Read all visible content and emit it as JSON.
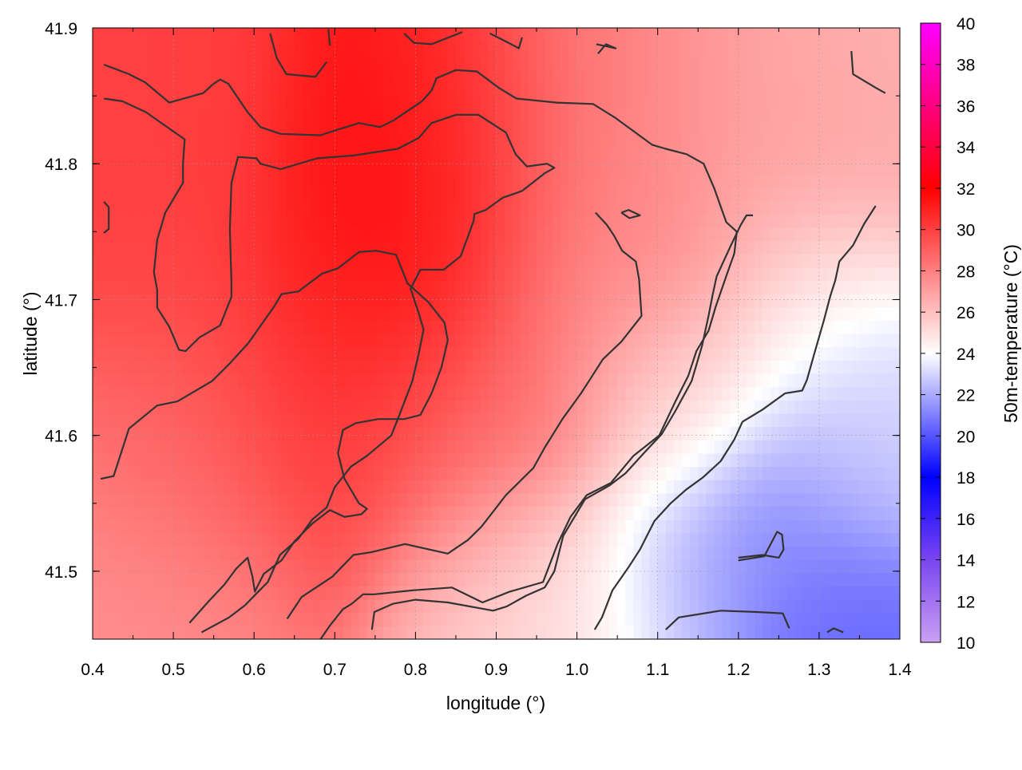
{
  "chart_data": {
    "type": "heatmap",
    "xlabel": "longitude (°)",
    "ylabel": "latitude (°)",
    "colorbar_label": "50m-temperature (°C)",
    "xlim": [
      0.4,
      1.4
    ],
    "ylim": [
      41.45,
      41.9
    ],
    "x_ticks": [
      0.4,
      0.5,
      0.6,
      0.7,
      0.8,
      0.9,
      1.0,
      1.1,
      1.2,
      1.3,
      1.4
    ],
    "x_tick_labels": [
      "0.4",
      "0.5",
      "0.6",
      "0.7",
      "0.8",
      "0.9",
      "1.0",
      "1.1",
      "1.2",
      "1.3",
      "1.4"
    ],
    "y_ticks": [
      41.5,
      41.6,
      41.7,
      41.8,
      41.9
    ],
    "y_tick_labels": [
      "41.5",
      "41.6",
      "41.7",
      "41.8",
      "41.9"
    ],
    "colorbar_range": [
      10,
      40
    ],
    "colorbar_ticks": [
      10,
      12,
      14,
      16,
      18,
      20,
      22,
      24,
      26,
      28,
      30,
      32,
      34,
      36,
      38,
      40
    ],
    "colorbar_tick_labels": [
      "10",
      "12",
      "14",
      "16",
      "18",
      "20",
      "22",
      "24",
      "26",
      "28",
      "30",
      "32",
      "34",
      "36",
      "38",
      "40"
    ],
    "colormap": [
      {
        "value": 10,
        "color": "#c9a0f2"
      },
      {
        "value": 14,
        "color": "#7a45f0"
      },
      {
        "value": 18,
        "color": "#0000ff"
      },
      {
        "value": 24,
        "color": "#ffffff"
      },
      {
        "value": 32,
        "color": "#ff0000"
      },
      {
        "value": 40,
        "color": "#ff00ff"
      }
    ],
    "grid": true,
    "contour_color": "#333333",
    "contour_lines": [
      [
        [
          0.414,
          41.873
        ],
        [
          0.445,
          41.866
        ],
        [
          0.465,
          41.86
        ],
        [
          0.495,
          41.845
        ],
        [
          0.537,
          41.852
        ],
        [
          0.55,
          41.859
        ],
        [
          0.558,
          41.862
        ],
        [
          0.568,
          41.859
        ],
        [
          0.592,
          41.838
        ],
        [
          0.608,
          41.827
        ],
        [
          0.633,
          41.822
        ],
        [
          0.682,
          41.821
        ],
        [
          0.703,
          41.825
        ],
        [
          0.73,
          41.83
        ],
        [
          0.756,
          41.827
        ],
        [
          0.773,
          41.832
        ],
        [
          0.808,
          41.846
        ],
        [
          0.82,
          41.854
        ],
        [
          0.826,
          41.863
        ],
        [
          0.85,
          41.869
        ],
        [
          0.876,
          41.868
        ],
        [
          0.903,
          41.856
        ],
        [
          0.925,
          41.848
        ],
        [
          0.975,
          41.845
        ],
        [
          1.02,
          41.844
        ],
        [
          1.047,
          41.834
        ],
        [
          1.093,
          41.814
        ],
        [
          1.11,
          41.811
        ],
        [
          1.136,
          41.807
        ],
        [
          1.157,
          41.8
        ],
        [
          1.17,
          41.782
        ],
        [
          1.185,
          41.757
        ],
        [
          1.198,
          41.75
        ],
        [
          1.195,
          41.734
        ],
        [
          1.186,
          41.719
        ],
        [
          1.172,
          41.695
        ],
        [
          1.163,
          41.677
        ],
        [
          1.148,
          41.662
        ],
        [
          1.138,
          41.644
        ],
        [
          1.122,
          41.625
        ],
        [
          1.102,
          41.6
        ],
        [
          1.07,
          41.585
        ],
        [
          1.042,
          41.565
        ],
        [
          1.012,
          41.556
        ],
        [
          0.992,
          41.54
        ],
        [
          0.976,
          41.52
        ],
        [
          0.958,
          41.492
        ],
        [
          0.917,
          41.485
        ],
        [
          0.883,
          41.477
        ],
        [
          0.845,
          41.488
        ],
        [
          0.798,
          41.486
        ],
        [
          0.749,
          41.483
        ],
        [
          0.735,
          41.483
        ],
        [
          0.721,
          41.476
        ],
        [
          0.71,
          41.472
        ],
        [
          0.694,
          41.46
        ],
        [
          0.68,
          41.448
        ]
      ],
      [
        [
          0.414,
          41.848
        ],
        [
          0.437,
          41.846
        ],
        [
          0.466,
          41.838
        ],
        [
          0.49,
          41.828
        ],
        [
          0.514,
          41.818
        ],
        [
          0.512,
          41.8
        ],
        [
          0.512,
          41.786
        ],
        [
          0.49,
          41.764
        ],
        [
          0.48,
          41.744
        ],
        [
          0.476,
          41.72
        ],
        [
          0.48,
          41.707
        ],
        [
          0.48,
          41.694
        ],
        [
          0.495,
          41.68
        ],
        [
          0.507,
          41.663
        ],
        [
          0.515,
          41.662
        ],
        [
          0.532,
          41.672
        ],
        [
          0.558,
          41.681
        ],
        [
          0.572,
          41.702
        ],
        [
          0.572,
          41.712
        ],
        [
          0.57,
          41.752
        ],
        [
          0.572,
          41.786
        ],
        [
          0.58,
          41.805
        ],
        [
          0.603,
          41.804
        ],
        [
          0.608,
          41.8
        ],
        [
          0.633,
          41.796
        ],
        [
          0.678,
          41.804
        ],
        [
          0.722,
          41.806
        ],
        [
          0.778,
          41.811
        ],
        [
          0.804,
          41.819
        ],
        [
          0.82,
          41.83
        ],
        [
          0.85,
          41.836
        ],
        [
          0.878,
          41.836
        ],
        [
          0.912,
          41.823
        ],
        [
          0.924,
          41.807
        ],
        [
          0.938,
          41.798
        ],
        [
          0.963,
          41.8
        ],
        [
          0.972,
          41.797
        ],
        [
          0.96,
          41.793
        ],
        [
          0.932,
          41.78
        ],
        [
          0.908,
          41.775
        ],
        [
          0.887,
          41.766
        ],
        [
          0.873,
          41.763
        ],
        [
          0.872,
          41.758
        ],
        [
          0.866,
          41.748
        ],
        [
          0.856,
          41.732
        ],
        [
          0.835,
          41.722
        ],
        [
          0.806,
          41.722
        ],
        [
          0.794,
          41.708
        ],
        [
          0.804,
          41.69
        ],
        [
          0.81,
          41.678
        ],
        [
          0.804,
          41.66
        ],
        [
          0.796,
          41.64
        ],
        [
          0.782,
          41.618
        ],
        [
          0.77,
          41.6
        ],
        [
          0.74,
          41.585
        ],
        [
          0.72,
          41.577
        ],
        [
          0.7,
          41.562
        ],
        [
          0.69,
          41.547
        ],
        [
          0.672,
          41.538
        ],
        [
          0.655,
          41.524
        ],
        [
          0.632,
          41.512
        ],
        [
          0.617,
          41.492
        ],
        [
          0.602,
          41.483
        ],
        [
          0.589,
          41.475
        ],
        [
          0.569,
          41.466
        ],
        [
          0.535,
          41.455
        ]
      ],
      [
        [
          0.41,
          41.568
        ],
        [
          0.426,
          41.57
        ],
        [
          0.445,
          41.605
        ],
        [
          0.48,
          41.622
        ],
        [
          0.505,
          41.625
        ],
        [
          0.548,
          41.64
        ],
        [
          0.57,
          41.653
        ],
        [
          0.593,
          41.668
        ],
        [
          0.625,
          41.695
        ],
        [
          0.634,
          41.704
        ],
        [
          0.655,
          41.706
        ],
        [
          0.684,
          41.719
        ],
        [
          0.704,
          41.723
        ],
        [
          0.73,
          41.735
        ],
        [
          0.751,
          41.736
        ],
        [
          0.776,
          41.733
        ],
        [
          0.79,
          41.712
        ],
        [
          0.816,
          41.698
        ],
        [
          0.836,
          41.683
        ],
        [
          0.84,
          41.67
        ],
        [
          0.832,
          41.65
        ],
        [
          0.82,
          41.631
        ],
        [
          0.806,
          41.615
        ],
        [
          0.786,
          41.612
        ],
        [
          0.754,
          41.612
        ],
        [
          0.726,
          41.609
        ],
        [
          0.71,
          41.604
        ],
        [
          0.704,
          41.587
        ],
        [
          0.712,
          41.568
        ],
        [
          0.73,
          41.55
        ],
        [
          0.74,
          41.546
        ],
        [
          0.733,
          41.542
        ],
        [
          0.712,
          41.54
        ],
        [
          0.694,
          41.545
        ],
        [
          0.672,
          41.535
        ],
        [
          0.65,
          41.522
        ],
        [
          0.634,
          41.508
        ],
        [
          0.612,
          41.498
        ],
        [
          0.601,
          41.485
        ],
        [
          0.598,
          41.496
        ],
        [
          0.592,
          41.51
        ],
        [
          0.578,
          41.502
        ],
        [
          0.563,
          41.49
        ],
        [
          0.544,
          41.478
        ],
        [
          0.52,
          41.462
        ]
      ],
      [
        [
          0.641,
          41.465
        ],
        [
          0.659,
          41.481
        ],
        [
          0.697,
          41.496
        ],
        [
          0.723,
          41.512
        ],
        [
          0.745,
          41.514
        ],
        [
          0.787,
          41.52
        ],
        [
          0.84,
          41.513
        ],
        [
          0.865,
          41.523
        ],
        [
          0.882,
          41.533
        ],
        [
          0.912,
          41.556
        ],
        [
          0.946,
          41.576
        ],
        [
          0.96,
          41.591
        ],
        [
          0.982,
          41.612
        ],
        [
          1.005,
          41.631
        ],
        [
          1.017,
          41.642
        ],
        [
          1.032,
          41.656
        ],
        [
          1.055,
          41.669
        ],
        [
          1.08,
          41.688
        ],
        [
          1.077,
          41.715
        ],
        [
          1.073,
          41.728
        ],
        [
          1.056,
          41.736
        ],
        [
          1.046,
          41.747
        ],
        [
          1.037,
          41.755
        ],
        [
          1.023,
          41.764
        ]
      ],
      [
        [
          0.746,
          41.457
        ],
        [
          0.749,
          41.47
        ],
        [
          0.772,
          41.476
        ],
        [
          0.8,
          41.479
        ],
        [
          0.84,
          41.477
        ],
        [
          0.896,
          41.471
        ],
        [
          0.913,
          41.474
        ],
        [
          0.937,
          41.482
        ],
        [
          0.96,
          41.488
        ],
        [
          0.972,
          41.5
        ],
        [
          0.983,
          41.526
        ],
        [
          1.01,
          41.553
        ],
        [
          1.04,
          41.563
        ],
        [
          1.06,
          41.572
        ],
        [
          1.083,
          41.587
        ],
        [
          1.105,
          41.601
        ],
        [
          1.122,
          41.618
        ],
        [
          1.142,
          41.64
        ],
        [
          1.155,
          41.666
        ],
        [
          1.163,
          41.688
        ],
        [
          1.168,
          41.703
        ],
        [
          1.173,
          41.717
        ],
        [
          1.19,
          41.739
        ],
        [
          1.203,
          41.755
        ],
        [
          1.21,
          41.762
        ],
        [
          1.218,
          41.762
        ]
      ],
      [
        [
          1.022,
          41.457
        ],
        [
          1.031,
          41.466
        ],
        [
          1.044,
          41.486
        ],
        [
          1.064,
          41.503
        ],
        [
          1.078,
          41.516
        ],
        [
          1.096,
          41.537
        ],
        [
          1.116,
          41.55
        ],
        [
          1.135,
          41.56
        ],
        [
          1.156,
          41.569
        ],
        [
          1.178,
          41.581
        ],
        [
          1.195,
          41.597
        ],
        [
          1.205,
          41.61
        ],
        [
          1.23,
          41.619
        ],
        [
          1.258,
          41.631
        ],
        [
          1.279,
          41.633
        ],
        [
          1.285,
          41.641
        ],
        [
          1.294,
          41.66
        ],
        [
          1.306,
          41.685
        ],
        [
          1.314,
          41.703
        ],
        [
          1.32,
          41.714
        ],
        [
          1.325,
          41.728
        ],
        [
          1.342,
          41.74
        ],
        [
          1.356,
          41.756
        ],
        [
          1.37,
          41.769
        ]
      ],
      [
        [
          1.11,
          41.457
        ],
        [
          1.126,
          41.466
        ],
        [
          1.178,
          41.471
        ],
        [
          1.223,
          41.47
        ],
        [
          1.255,
          41.469
        ],
        [
          1.263,
          41.458
        ]
      ],
      [
        [
          1.2,
          41.51
        ],
        [
          1.23,
          41.512
        ],
        [
          1.25,
          41.51
        ],
        [
          1.256,
          41.516
        ],
        [
          1.254,
          41.527
        ],
        [
          1.248,
          41.529
        ],
        [
          1.232,
          41.511
        ],
        [
          1.2,
          41.508
        ]
      ],
      [
        [
          1.055,
          41.764
        ],
        [
          1.064,
          41.766
        ],
        [
          1.078,
          41.762
        ],
        [
          1.065,
          41.76
        ],
        [
          1.055,
          41.764
        ]
      ],
      [
        [
          0.414,
          41.749
        ],
        [
          0.42,
          41.752
        ],
        [
          0.42,
          41.768
        ],
        [
          0.414,
          41.772
        ]
      ],
      [
        [
          0.62,
          41.896
        ],
        [
          0.628,
          41.878
        ],
        [
          0.64,
          41.866
        ],
        [
          0.676,
          41.864
        ],
        [
          0.69,
          41.875
        ]
      ],
      [
        [
          0.692,
          41.899
        ],
        [
          0.694,
          41.887
        ]
      ],
      [
        [
          0.786,
          41.896
        ],
        [
          0.798,
          41.889
        ],
        [
          0.82,
          41.888
        ],
        [
          0.858,
          41.897
        ]
      ],
      [
        [
          0.892,
          41.896
        ],
        [
          0.912,
          41.89
        ],
        [
          0.928,
          41.885
        ],
        [
          0.932,
          41.893
        ]
      ],
      [
        [
          1.024,
          41.888
        ],
        [
          1.048,
          41.885
        ],
        [
          1.036,
          41.888
        ],
        [
          1.026,
          41.881
        ]
      ],
      [
        [
          1.34,
          41.883
        ],
        [
          1.342,
          41.866
        ],
        [
          1.37,
          41.856
        ],
        [
          1.382,
          41.852
        ]
      ],
      [
        [
          1.31,
          41.455
        ],
        [
          1.318,
          41.458
        ],
        [
          1.33,
          41.455
        ]
      ]
    ],
    "hot_spots": [
      {
        "lon": 0.775,
        "lat": 41.745,
        "temp": 32.0,
        "sigma": 0.1
      },
      {
        "lon": 0.84,
        "lat": 41.8,
        "temp": 31.0,
        "sigma": 0.09
      },
      {
        "lon": 0.7,
        "lat": 41.65,
        "temp": 30.5,
        "sigma": 0.1
      },
      {
        "lon": 0.5,
        "lat": 41.78,
        "temp": 30.0,
        "sigma": 0.1
      },
      {
        "lon": 0.52,
        "lat": 41.6,
        "temp": 29.0,
        "sigma": 0.1
      },
      {
        "lon": 0.88,
        "lat": 41.6,
        "temp": 28.5,
        "sigma": 0.1
      },
      {
        "lon": 1.0,
        "lat": 41.8,
        "temp": 28.0,
        "sigma": 0.1
      },
      {
        "lon": 1.05,
        "lat": 41.7,
        "temp": 27.5,
        "sigma": 0.1
      },
      {
        "lon": 1.25,
        "lat": 41.8,
        "temp": 27.0,
        "sigma": 0.1
      },
      {
        "lon": 1.38,
        "lat": 41.87,
        "temp": 26.5,
        "sigma": 0.08
      },
      {
        "lon": 0.45,
        "lat": 41.48,
        "temp": 27.5,
        "sigma": 0.1
      },
      {
        "lon": 0.92,
        "lat": 41.48,
        "temp": 25.5,
        "sigma": 0.08
      },
      {
        "lon": 1.0,
        "lat": 41.47,
        "temp": 24.5,
        "sigma": 0.07
      },
      {
        "lon": 1.12,
        "lat": 41.62,
        "temp": 24.5,
        "sigma": 0.07
      },
      {
        "lon": 1.3,
        "lat": 41.68,
        "temp": 24.0,
        "sigma": 0.08
      },
      {
        "lon": 1.22,
        "lat": 41.52,
        "temp": 21.0,
        "sigma": 0.07
      },
      {
        "lon": 1.32,
        "lat": 41.46,
        "temp": 20.5,
        "sigma": 0.06
      },
      {
        "lon": 1.32,
        "lat": 41.58,
        "temp": 22.0,
        "sigma": 0.07
      },
      {
        "lon": 1.12,
        "lat": 41.5,
        "temp": 22.5,
        "sigma": 0.07
      },
      {
        "lon": 1.38,
        "lat": 41.62,
        "temp": 23.0,
        "sigma": 0.06
      }
    ]
  }
}
